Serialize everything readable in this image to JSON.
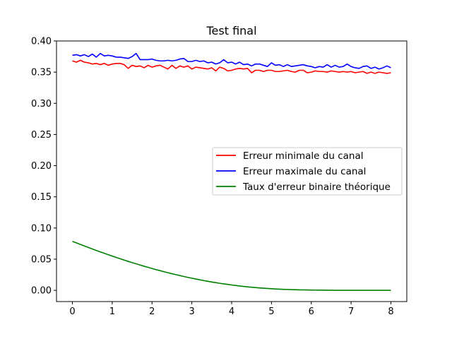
{
  "chart_data": {
    "type": "line",
    "title": "Test final",
    "xlabel": "",
    "ylabel": "",
    "xlim": [
      -0.4,
      8.4
    ],
    "ylim": [
      -0.018,
      0.4
    ],
    "xticks": [
      0,
      1,
      2,
      3,
      4,
      5,
      6,
      7,
      8
    ],
    "xtick_labels": [
      "0",
      "1",
      "2",
      "3",
      "4",
      "5",
      "6",
      "7",
      "8"
    ],
    "yticks": [
      0.0,
      0.05,
      0.1,
      0.15,
      0.2,
      0.25,
      0.3,
      0.35,
      0.4
    ],
    "ytick_labels": [
      "0.00",
      "0.05",
      "0.10",
      "0.15",
      "0.20",
      "0.25",
      "0.30",
      "0.35",
      "0.40"
    ],
    "grid": false,
    "legend_position": "center-right",
    "x": [
      0,
      0.1,
      0.2,
      0.3,
      0.4,
      0.5,
      0.6,
      0.7,
      0.8,
      0.9,
      1,
      1.1,
      1.2,
      1.3,
      1.4,
      1.5,
      1.6,
      1.7,
      1.8,
      1.9,
      2,
      2.1,
      2.2,
      2.3,
      2.4,
      2.5,
      2.6,
      2.7,
      2.8,
      2.9,
      3,
      3.1,
      3.2,
      3.3,
      3.4,
      3.5,
      3.6,
      3.7,
      3.8,
      3.9,
      4,
      4.1,
      4.2,
      4.3,
      4.4,
      4.5,
      4.6,
      4.7,
      4.8,
      4.9,
      5,
      5.1,
      5.2,
      5.3,
      5.4,
      5.5,
      5.6,
      5.7,
      5.8,
      5.9,
      6,
      6.1,
      6.2,
      6.3,
      6.4,
      6.5,
      6.6,
      6.7,
      6.8,
      6.9,
      7,
      7.1,
      7.2,
      7.3,
      7.4,
      7.5,
      7.6,
      7.7,
      7.8,
      7.9,
      8
    ],
    "series": [
      {
        "name": "Erreur minimale du canal",
        "color": "#ff0000",
        "values": [
          0.368,
          0.366,
          0.369,
          0.366,
          0.365,
          0.363,
          0.364,
          0.362,
          0.364,
          0.361,
          0.363,
          0.364,
          0.364,
          0.362,
          0.356,
          0.361,
          0.359,
          0.36,
          0.357,
          0.361,
          0.358,
          0.36,
          0.361,
          0.358,
          0.355,
          0.361,
          0.356,
          0.36,
          0.358,
          0.36,
          0.355,
          0.358,
          0.357,
          0.356,
          0.355,
          0.357,
          0.352,
          0.358,
          0.356,
          0.352,
          0.353,
          0.355,
          0.356,
          0.355,
          0.356,
          0.349,
          0.353,
          0.353,
          0.351,
          0.353,
          0.353,
          0.351,
          0.351,
          0.352,
          0.353,
          0.351,
          0.35,
          0.353,
          0.353,
          0.349,
          0.35,
          0.352,
          0.351,
          0.351,
          0.35,
          0.352,
          0.351,
          0.35,
          0.351,
          0.35,
          0.351,
          0.349,
          0.35,
          0.351,
          0.348,
          0.35,
          0.348,
          0.35,
          0.349,
          0.348,
          0.349
        ]
      },
      {
        "name": "Erreur maximale du canal",
        "color": "#0000ff",
        "values": [
          0.377,
          0.378,
          0.376,
          0.378,
          0.375,
          0.379,
          0.374,
          0.38,
          0.376,
          0.377,
          0.376,
          0.374,
          0.374,
          0.373,
          0.372,
          0.375,
          0.38,
          0.37,
          0.37,
          0.37,
          0.371,
          0.369,
          0.368,
          0.368,
          0.369,
          0.368,
          0.369,
          0.371,
          0.372,
          0.367,
          0.367,
          0.369,
          0.367,
          0.368,
          0.365,
          0.366,
          0.363,
          0.365,
          0.37,
          0.365,
          0.366,
          0.363,
          0.366,
          0.362,
          0.363,
          0.36,
          0.363,
          0.363,
          0.361,
          0.359,
          0.365,
          0.361,
          0.362,
          0.359,
          0.362,
          0.359,
          0.36,
          0.361,
          0.362,
          0.36,
          0.359,
          0.357,
          0.359,
          0.358,
          0.362,
          0.358,
          0.361,
          0.358,
          0.359,
          0.363,
          0.359,
          0.357,
          0.356,
          0.359,
          0.36,
          0.356,
          0.358,
          0.355,
          0.357,
          0.36,
          0.357
        ]
      },
      {
        "name": "Taux d'erreur binaire théorique",
        "color": "#008000",
        "values": [
          0.0786,
          0.0761,
          0.0736,
          0.0712,
          0.0688,
          0.0664,
          0.064,
          0.0617,
          0.0594,
          0.0572,
          0.055,
          0.0528,
          0.0507,
          0.0486,
          0.0465,
          0.0445,
          0.0426,
          0.0406,
          0.0387,
          0.0369,
          0.0351,
          0.0333,
          0.0316,
          0.0299,
          0.0283,
          0.0267,
          0.0252,
          0.0237,
          0.0222,
          0.0208,
          0.0195,
          0.0182,
          0.0169,
          0.0157,
          0.0145,
          0.0134,
          0.0124,
          0.0113,
          0.0104,
          0.0095,
          0.0086,
          0.0078,
          0.007,
          0.0063,
          0.0056,
          0.005,
          0.0044,
          0.0039,
          0.0034,
          0.003,
          0.0026,
          0.0022,
          0.0019,
          0.0016,
          0.0014,
          0.0012,
          0.001,
          0.0008,
          0.0007,
          0.0006,
          0.0005,
          0.0004,
          0.0003,
          0.0003,
          0.0002,
          0.0002,
          0.0001,
          0.0001,
          0.0001,
          0.0001,
          0.0001,
          0.0,
          0.0,
          0.0,
          0.0,
          0.0,
          0.0,
          0.0,
          0.0,
          0.0,
          0.0
        ]
      }
    ]
  }
}
